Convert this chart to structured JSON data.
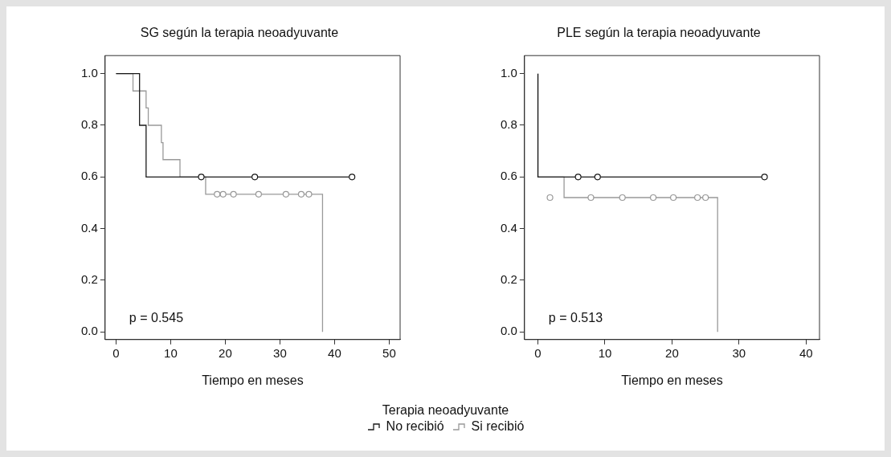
{
  "chart_data": [
    {
      "type": "step",
      "title": "SG según la terapia neoadyuvante",
      "xlabel": "Tiempo en meses",
      "xlim": [
        -2,
        52
      ],
      "xticks": [
        0,
        10,
        20,
        30,
        40,
        50
      ],
      "ylim": [
        -0.03,
        1.07
      ],
      "yticks": [
        {
          "value": 0,
          "label": "0.0"
        },
        {
          "value": 0.2,
          "label": "0.2"
        },
        {
          "value": 0.4,
          "label": "0.4"
        },
        {
          "value": 0.6,
          "label": "0.6"
        },
        {
          "value": 0.8,
          "label": "0.8"
        },
        {
          "value": 1,
          "label": "1.0"
        }
      ],
      "grid": false,
      "legend": "bottom",
      "legend_title": "Terapia neoadyuvante",
      "annotations": [
        "p = 0.545"
      ],
      "series": [
        {
          "name": "No recibió",
          "type": "step",
          "color": "#1a1a1a",
          "marker": "none",
          "x": [
            0,
            4.3,
            5.5,
            43.2
          ],
          "values": [
            1,
            0.8,
            0.6,
            0.6
          ]
        },
        {
          "name": "Si recibió",
          "type": "step",
          "color": "#999999",
          "marker": "none",
          "x": [
            0,
            3.1,
            5.5,
            5.9,
            8.3,
            8.6,
            11.7,
            16.4,
            37.8
          ],
          "values": [
            1,
            0.933,
            0.867,
            0.8,
            0.733,
            0.667,
            0.6,
            0.533,
            0
          ]
        },
        {
          "type": "scatter",
          "color": "#1a1a1a",
          "marker": "circle",
          "x": [
            15.6,
            25.4,
            43.2
          ],
          "values": [
            0.6,
            0.6,
            0.6
          ]
        },
        {
          "type": "scatter",
          "color": "#999999",
          "marker": "circle",
          "x": [
            18.5,
            19.6,
            21.5,
            26.1,
            31.1,
            33.9,
            35.3
          ],
          "values": [
            0.533,
            0.533,
            0.533,
            0.533,
            0.533,
            0.533,
            0.533
          ]
        }
      ]
    },
    {
      "type": "step",
      "title": "PLE según la terapia neoadyuvante",
      "xlabel": "Tiempo en meses",
      "xlim": [
        -2,
        42
      ],
      "xticks": [
        0,
        10,
        20,
        30,
        40
      ],
      "ylim": [
        -0.03,
        1.07
      ],
      "yticks": [
        {
          "value": 0,
          "label": "0.0"
        },
        {
          "value": 0.2,
          "label": "0.2"
        },
        {
          "value": 0.4,
          "label": "0.4"
        },
        {
          "value": 0.6,
          "label": "0.6"
        },
        {
          "value": 0.8,
          "label": "0.8"
        },
        {
          "value": 1,
          "label": "1.0"
        }
      ],
      "grid": false,
      "annotations": [
        "p = 0.513"
      ],
      "series": [
        {
          "type": "step",
          "color": "#1a1a1a",
          "marker": "none",
          "x": [
            0,
            0,
            33.8
          ],
          "values": [
            1,
            0.6,
            0.6
          ]
        },
        {
          "type": "step",
          "color": "#999999",
          "marker": "none",
          "x": [
            0,
            0,
            3.9,
            26.8
          ],
          "values": [
            1,
            0.6,
            0.52,
            0
          ]
        },
        {
          "type": "scatter",
          "color": "#1a1a1a",
          "marker": "circle",
          "x": [
            6.0,
            8.9,
            33.8
          ],
          "values": [
            0.6,
            0.6,
            0.6
          ]
        },
        {
          "type": "scatter",
          "color": "#999999",
          "marker": "circle",
          "x": [
            1.8,
            7.9,
            12.6,
            17.2,
            20.2,
            23.8,
            25.0
          ],
          "values": [
            0.52,
            0.52,
            0.52,
            0.52,
            0.52,
            0.52,
            0.52
          ]
        }
      ]
    }
  ]
}
